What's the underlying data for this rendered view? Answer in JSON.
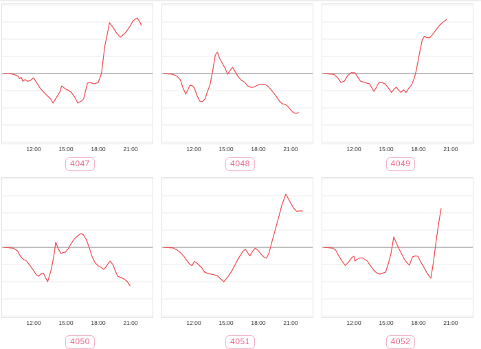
{
  "colors": {
    "line": "#ef5055",
    "zero_line": "#9b9b9b",
    "gridline": "#ebebeb",
    "panel_border": "#e2e2e2",
    "tick_label": "#3a3a3a",
    "badge_text": "#ec6a8c",
    "badge_border": "#f6b4ca",
    "badge_bg": "#ffffff"
  },
  "chart_data": [
    {
      "type": "line",
      "badge": "4047",
      "x_tick_labels": [
        "12:00",
        "15:00",
        "18:00",
        "21:00"
      ],
      "x_tick_hours": [
        12,
        15,
        18,
        21
      ],
      "x_range_hours": [
        9.2,
        23.3
      ],
      "y_unit": "relative (one gridline spacing = 1), baseline 0 drawn as gray zero line",
      "grid": "horizontal only",
      "points": [
        [
          9.2,
          0
        ],
        [
          9.9,
          -0.02
        ],
        [
          10.2,
          -0.06
        ],
        [
          10.55,
          -0.16
        ],
        [
          10.7,
          -0.3
        ],
        [
          10.85,
          -0.22
        ],
        [
          11.0,
          -0.45
        ],
        [
          11.2,
          -0.35
        ],
        [
          11.45,
          -0.45
        ],
        [
          11.7,
          -0.4
        ],
        [
          12.0,
          -0.25
        ],
        [
          12.2,
          -0.46
        ],
        [
          12.65,
          -0.9
        ],
        [
          13.2,
          -1.25
        ],
        [
          13.6,
          -1.5
        ],
        [
          13.8,
          -1.72
        ],
        [
          14.15,
          -1.36
        ],
        [
          14.45,
          -1.05
        ],
        [
          14.6,
          -0.72
        ],
        [
          14.95,
          -0.9
        ],
        [
          15.3,
          -1.0
        ],
        [
          15.5,
          -1.1
        ],
        [
          15.8,
          -1.36
        ],
        [
          16.1,
          -1.72
        ],
        [
          16.45,
          -1.6
        ],
        [
          16.65,
          -1.46
        ],
        [
          17.0,
          -0.56
        ],
        [
          17.2,
          -0.52
        ],
        [
          17.4,
          -0.56
        ],
        [
          17.65,
          -0.6
        ],
        [
          18.0,
          -0.52
        ],
        [
          18.3,
          0.0
        ],
        [
          18.6,
          1.56
        ],
        [
          19.05,
          2.96
        ],
        [
          19.4,
          2.66
        ],
        [
          19.7,
          2.36
        ],
        [
          20.05,
          2.12
        ],
        [
          20.5,
          2.36
        ],
        [
          20.9,
          2.7
        ],
        [
          21.25,
          3.08
        ],
        [
          21.6,
          3.24
        ],
        [
          21.9,
          2.96
        ],
        [
          22.0,
          2.8
        ]
      ]
    },
    {
      "type": "line",
      "badge": "4048",
      "x_tick_labels": [
        "12:00",
        "15:00",
        "18:00",
        "21:00"
      ],
      "x_tick_hours": [
        12,
        15,
        18,
        21
      ],
      "x_range_hours": [
        9.2,
        23.3
      ],
      "y_unit": "relative (one gridline spacing = 1), baseline 0 drawn as gray zero line",
      "grid": "horizontal only",
      "points": [
        [
          9.2,
          0
        ],
        [
          10.0,
          -0.04
        ],
        [
          10.45,
          -0.16
        ],
        [
          10.75,
          -0.36
        ],
        [
          11.0,
          -0.84
        ],
        [
          11.25,
          -1.2
        ],
        [
          11.5,
          -0.88
        ],
        [
          11.65,
          -0.68
        ],
        [
          11.9,
          -0.72
        ],
        [
          12.05,
          -0.84
        ],
        [
          12.3,
          -1.28
        ],
        [
          12.55,
          -1.6
        ],
        [
          12.8,
          -1.64
        ],
        [
          13.05,
          -1.48
        ],
        [
          13.25,
          -1.08
        ],
        [
          13.5,
          -0.68
        ],
        [
          13.75,
          0.12
        ],
        [
          14.0,
          1.08
        ],
        [
          14.2,
          1.24
        ],
        [
          14.4,
          0.88
        ],
        [
          14.65,
          0.6
        ],
        [
          14.9,
          0.32
        ],
        [
          15.15,
          -0.04
        ],
        [
          15.4,
          0.2
        ],
        [
          15.6,
          0.36
        ],
        [
          15.8,
          0.16
        ],
        [
          16.1,
          -0.16
        ],
        [
          16.35,
          -0.36
        ],
        [
          16.75,
          -0.52
        ],
        [
          17.0,
          -0.72
        ],
        [
          17.3,
          -0.8
        ],
        [
          17.55,
          -0.8
        ],
        [
          17.8,
          -0.72
        ],
        [
          18.05,
          -0.64
        ],
        [
          18.3,
          -0.62
        ],
        [
          18.6,
          -0.64
        ],
        [
          18.85,
          -0.72
        ],
        [
          19.1,
          -0.88
        ],
        [
          19.35,
          -1.08
        ],
        [
          19.7,
          -1.36
        ],
        [
          19.95,
          -1.6
        ],
        [
          20.2,
          -1.76
        ],
        [
          20.5,
          -1.8
        ],
        [
          20.75,
          -1.92
        ],
        [
          21.0,
          -2.12
        ],
        [
          21.25,
          -2.28
        ],
        [
          21.5,
          -2.32
        ],
        [
          21.75,
          -2.28
        ]
      ]
    },
    {
      "type": "line",
      "badge": "4049",
      "x_tick_labels": [
        "12:00",
        "15:00",
        "18:00",
        "21:00"
      ],
      "x_tick_hours": [
        12,
        15,
        18,
        21
      ],
      "x_range_hours": [
        9.2,
        23.3
      ],
      "y_unit": "relative (one gridline spacing = 1), baseline 0 drawn as gray zero line",
      "grid": "horizontal only",
      "points": [
        [
          9.2,
          0
        ],
        [
          10.15,
          -0.05
        ],
        [
          10.5,
          -0.25
        ],
        [
          10.8,
          -0.52
        ],
        [
          11.1,
          -0.45
        ],
        [
          11.45,
          -0.1
        ],
        [
          11.75,
          0.05
        ],
        [
          12.1,
          0.04
        ],
        [
          12.35,
          -0.2
        ],
        [
          12.6,
          -0.44
        ],
        [
          12.9,
          -0.5
        ],
        [
          13.2,
          -0.56
        ],
        [
          13.45,
          -0.6
        ],
        [
          13.6,
          -0.76
        ],
        [
          13.85,
          -1.04
        ],
        [
          14.1,
          -0.8
        ],
        [
          14.35,
          -0.5
        ],
        [
          14.6,
          -0.52
        ],
        [
          14.9,
          -0.6
        ],
        [
          15.2,
          -0.84
        ],
        [
          15.5,
          -1.1
        ],
        [
          15.75,
          -0.9
        ],
        [
          15.95,
          -0.8
        ],
        [
          16.2,
          -1.0
        ],
        [
          16.35,
          -1.1
        ],
        [
          16.6,
          -0.95
        ],
        [
          16.85,
          -1.1
        ],
        [
          17.1,
          -0.85
        ],
        [
          17.35,
          -0.68
        ],
        [
          17.6,
          -0.3
        ],
        [
          17.8,
          0.2
        ],
        [
          18.1,
          1.2
        ],
        [
          18.35,
          1.96
        ],
        [
          18.55,
          2.16
        ],
        [
          18.75,
          2.1
        ],
        [
          19.05,
          2.08
        ],
        [
          19.35,
          2.3
        ],
        [
          19.65,
          2.56
        ],
        [
          19.95,
          2.8
        ],
        [
          20.3,
          3.0
        ],
        [
          20.6,
          3.14
        ]
      ]
    },
    {
      "type": "line",
      "badge": "4050",
      "x_tick_labels": [
        "12:00",
        "15:00",
        "18:00",
        "21:00"
      ],
      "x_tick_hours": [
        12,
        15,
        18,
        21
      ],
      "x_range_hours": [
        9.2,
        23.3
      ],
      "y_unit": "relative (one gridline spacing = 1), baseline 0 drawn as gray zero line",
      "grid": "horizontal only",
      "points": [
        [
          9.2,
          0
        ],
        [
          10.1,
          -0.05
        ],
        [
          10.5,
          -0.2
        ],
        [
          10.7,
          -0.45
        ],
        [
          10.9,
          -0.62
        ],
        [
          11.1,
          -0.72
        ],
        [
          11.35,
          -0.8
        ],
        [
          11.7,
          -1.1
        ],
        [
          12.0,
          -1.36
        ],
        [
          12.25,
          -1.6
        ],
        [
          12.45,
          -1.68
        ],
        [
          12.65,
          -1.56
        ],
        [
          12.9,
          -1.5
        ],
        [
          13.1,
          -1.76
        ],
        [
          13.3,
          -2.0
        ],
        [
          13.6,
          -1.36
        ],
        [
          13.85,
          -0.6
        ],
        [
          14.05,
          0.3
        ],
        [
          14.3,
          -0.1
        ],
        [
          14.55,
          -0.36
        ],
        [
          14.75,
          -0.3
        ],
        [
          14.95,
          -0.28
        ],
        [
          15.2,
          -0.1
        ],
        [
          15.5,
          0.24
        ],
        [
          15.8,
          0.5
        ],
        [
          16.1,
          0.68
        ],
        [
          16.4,
          0.8
        ],
        [
          16.6,
          0.74
        ],
        [
          16.9,
          0.44
        ],
        [
          17.15,
          0.0
        ],
        [
          17.4,
          -0.5
        ],
        [
          17.7,
          -0.9
        ],
        [
          18.0,
          -1.08
        ],
        [
          18.25,
          -1.16
        ],
        [
          18.5,
          -1.28
        ],
        [
          18.7,
          -1.16
        ],
        [
          18.9,
          -0.96
        ],
        [
          19.1,
          -0.8
        ],
        [
          19.35,
          -1.0
        ],
        [
          19.6,
          -1.4
        ],
        [
          19.8,
          -1.68
        ],
        [
          20.1,
          -1.76
        ],
        [
          20.4,
          -1.84
        ],
        [
          20.7,
          -2.0
        ],
        [
          20.95,
          -2.24
        ]
      ]
    },
    {
      "type": "line",
      "badge": "4051",
      "x_tick_labels": [
        "12:00",
        "15:00",
        "18:00",
        "21:00"
      ],
      "x_tick_hours": [
        12,
        15,
        18,
        21
      ],
      "x_range_hours": [
        9.2,
        23.3
      ],
      "y_unit": "relative (one gridline spacing = 1), baseline 0 drawn as gray zero line",
      "grid": "horizontal only",
      "points": [
        [
          9.2,
          0
        ],
        [
          10.1,
          -0.04
        ],
        [
          10.45,
          -0.16
        ],
        [
          10.75,
          -0.3
        ],
        [
          11.05,
          -0.5
        ],
        [
          11.35,
          -0.76
        ],
        [
          11.65,
          -1.0
        ],
        [
          11.85,
          -1.06
        ],
        [
          12.05,
          -0.82
        ],
        [
          12.25,
          -0.9
        ],
        [
          12.5,
          -1.04
        ],
        [
          12.75,
          -1.2
        ],
        [
          13.0,
          -1.44
        ],
        [
          13.3,
          -1.52
        ],
        [
          13.6,
          -1.56
        ],
        [
          13.9,
          -1.6
        ],
        [
          14.2,
          -1.66
        ],
        [
          14.5,
          -1.84
        ],
        [
          14.8,
          -2.0
        ],
        [
          15.05,
          -1.8
        ],
        [
          15.3,
          -1.6
        ],
        [
          15.55,
          -1.36
        ],
        [
          15.85,
          -1.0
        ],
        [
          16.1,
          -0.7
        ],
        [
          16.35,
          -0.44
        ],
        [
          16.6,
          -0.2
        ],
        [
          16.8,
          -0.12
        ],
        [
          17.0,
          -0.3
        ],
        [
          17.2,
          -0.5
        ],
        [
          17.45,
          -0.24
        ],
        [
          17.7,
          -0.05
        ],
        [
          17.95,
          -0.16
        ],
        [
          18.2,
          -0.36
        ],
        [
          18.5,
          -0.56
        ],
        [
          18.75,
          -0.64
        ],
        [
          19.0,
          -0.3
        ],
        [
          19.25,
          0.3
        ],
        [
          19.6,
          1.1
        ],
        [
          19.9,
          1.8
        ],
        [
          20.2,
          2.5
        ],
        [
          20.55,
          3.1
        ],
        [
          20.9,
          2.7
        ],
        [
          21.25,
          2.3
        ],
        [
          21.55,
          2.1
        ],
        [
          21.85,
          2.12
        ],
        [
          22.1,
          2.12
        ]
      ]
    },
    {
      "type": "line",
      "badge": "4052",
      "x_tick_labels": [
        "12:00",
        "15:00",
        "18:00",
        "21:00"
      ],
      "x_tick_hours": [
        12,
        15,
        18,
        21
      ],
      "x_range_hours": [
        9.2,
        23.3
      ],
      "y_unit": "relative (one gridline spacing = 1), baseline 0 drawn as gray zero line",
      "grid": "horizontal only",
      "points": [
        [
          9.2,
          0
        ],
        [
          10.05,
          -0.05
        ],
        [
          10.3,
          -0.16
        ],
        [
          10.6,
          -0.5
        ],
        [
          10.9,
          -0.8
        ],
        [
          11.2,
          -1.06
        ],
        [
          11.5,
          -0.86
        ],
        [
          11.8,
          -0.6
        ],
        [
          12.0,
          -0.52
        ],
        [
          12.1,
          -0.8
        ],
        [
          12.3,
          -0.7
        ],
        [
          12.55,
          -0.62
        ],
        [
          12.8,
          -0.62
        ],
        [
          13.0,
          -0.7
        ],
        [
          13.25,
          -0.8
        ],
        [
          13.5,
          -1.04
        ],
        [
          13.8,
          -1.3
        ],
        [
          14.1,
          -1.48
        ],
        [
          14.4,
          -1.56
        ],
        [
          14.7,
          -1.5
        ],
        [
          14.95,
          -1.44
        ],
        [
          15.2,
          -0.96
        ],
        [
          15.45,
          -0.36
        ],
        [
          15.7,
          0.6
        ],
        [
          15.95,
          0.24
        ],
        [
          16.2,
          -0.1
        ],
        [
          16.45,
          -0.4
        ],
        [
          16.7,
          -0.7
        ],
        [
          16.95,
          -0.9
        ],
        [
          17.15,
          -1.04
        ],
        [
          17.45,
          -0.56
        ],
        [
          17.7,
          -0.5
        ],
        [
          17.95,
          -0.52
        ],
        [
          18.2,
          -0.84
        ],
        [
          18.45,
          -1.1
        ],
        [
          18.7,
          -1.4
        ],
        [
          18.95,
          -1.64
        ],
        [
          19.15,
          -1.8
        ],
        [
          19.4,
          -0.84
        ],
        [
          19.65,
          0.4
        ],
        [
          19.9,
          1.5
        ],
        [
          20.1,
          2.25
        ]
      ]
    }
  ]
}
